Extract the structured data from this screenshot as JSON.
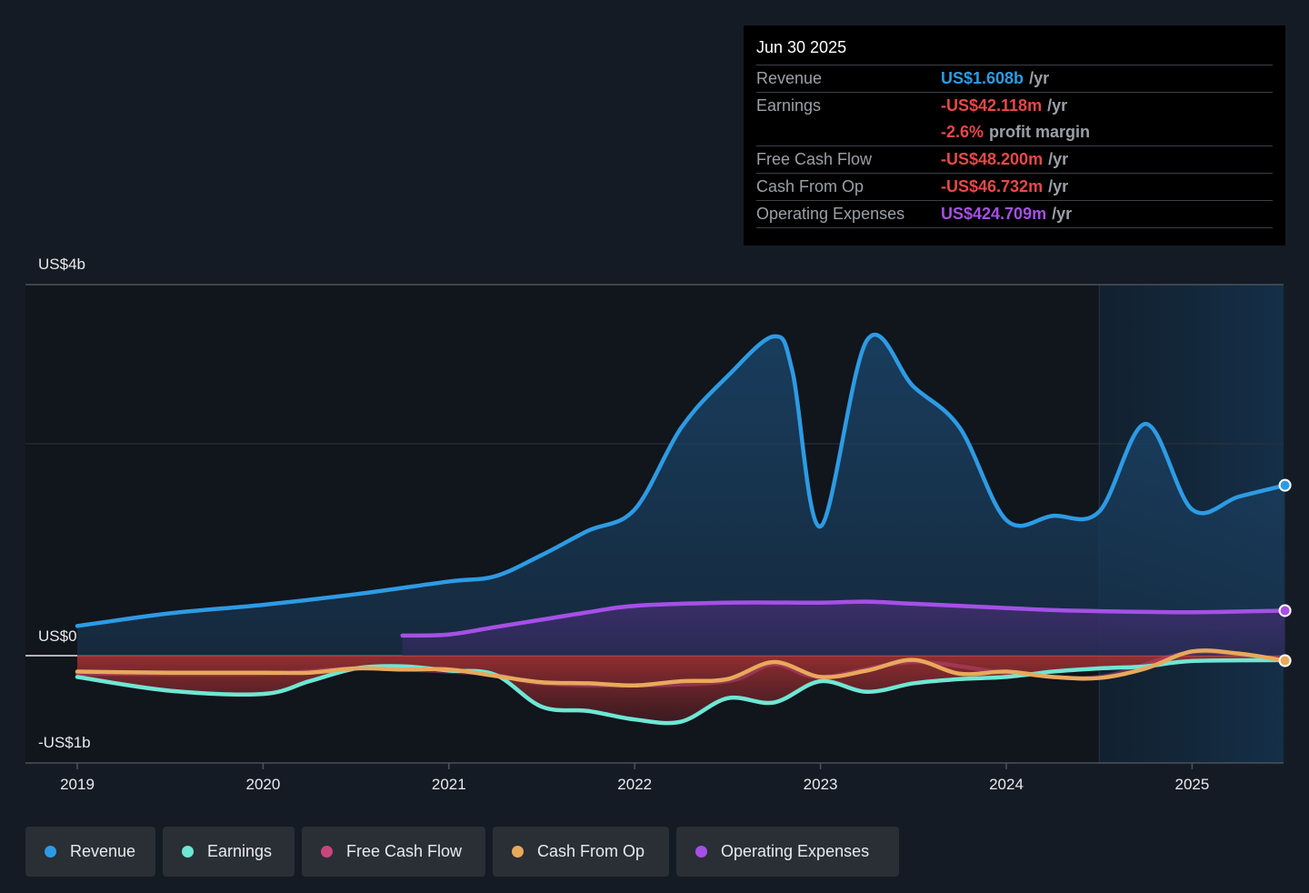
{
  "tooltip": {
    "date": "Jun 30 2025",
    "rows": [
      {
        "label": "Revenue",
        "value": "US$1.608b",
        "unit": "/yr",
        "color": "#2d9be4"
      },
      {
        "label": "Earnings",
        "value": "-US$42.118m",
        "unit": "/yr",
        "color": "#e84848"
      },
      {
        "label": "",
        "value": "-2.6%",
        "unit": "profit margin",
        "color": "#e84848"
      },
      {
        "label": "Free Cash Flow",
        "value": "-US$48.200m",
        "unit": "/yr",
        "color": "#e84848"
      },
      {
        "label": "Cash From Op",
        "value": "-US$46.732m",
        "unit": "/yr",
        "color": "#e84848"
      },
      {
        "label": "Operating Expenses",
        "value": "US$424.709m",
        "unit": "/yr",
        "color": "#a550e6"
      }
    ]
  },
  "legend": [
    {
      "label": "Revenue",
      "color": "#2d9be4"
    },
    {
      "label": "Earnings",
      "color": "#6ee7d4"
    },
    {
      "label": "Free Cash Flow",
      "color": "#c8467f"
    },
    {
      "label": "Cash From Op",
      "color": "#e8a95c"
    },
    {
      "label": "Operating Expenses",
      "color": "#a550e6"
    }
  ],
  "chart_data": {
    "type": "area",
    "title": "",
    "xlabel": "",
    "ylabel": "",
    "y_tick_labels": [
      "US$4b",
      "US$0",
      "-US$1b"
    ],
    "x_tick_labels": [
      "2019",
      "2020",
      "2021",
      "2022",
      "2023",
      "2024",
      "2025"
    ],
    "xlim": [
      2019.0,
      2025.5
    ],
    "ylim": [
      -1.0,
      4.0
    ],
    "units": "USD billions",
    "highlight_region_start": 2024.5,
    "series": [
      {
        "name": "Revenue",
        "color": "#2d9be4",
        "x": [
          2019.0,
          2019.5,
          2020.0,
          2020.5,
          2021.0,
          2021.25,
          2021.5,
          2021.75,
          2022.0,
          2022.25,
          2022.5,
          2022.75,
          2022.85,
          2023.0,
          2023.25,
          2023.5,
          2023.75,
          2024.0,
          2024.25,
          2024.5,
          2024.75,
          2025.0,
          2025.25,
          2025.5
        ],
        "values": [
          0.28,
          0.4,
          0.48,
          0.58,
          0.7,
          0.75,
          0.95,
          1.18,
          1.38,
          2.2,
          2.85,
          3.35,
          2.9,
          1.22,
          3.3,
          2.72,
          2.2,
          1.28,
          1.32,
          1.36,
          2.25,
          1.38,
          1.5,
          1.608
        ]
      },
      {
        "name": "Earnings",
        "color": "#6ee7d4",
        "x": [
          2019.0,
          2019.5,
          2020.0,
          2020.25,
          2020.5,
          2020.75,
          2021.0,
          2021.25,
          2021.5,
          2021.75,
          2022.0,
          2022.25,
          2022.5,
          2022.75,
          2023.0,
          2023.25,
          2023.5,
          2023.75,
          2024.0,
          2024.25,
          2024.5,
          2024.75,
          2025.0,
          2025.5
        ],
        "values": [
          -0.2,
          -0.33,
          -0.36,
          -0.24,
          -0.12,
          -0.1,
          -0.14,
          -0.18,
          -0.48,
          -0.52,
          -0.6,
          -0.62,
          -0.4,
          -0.44,
          -0.24,
          -0.34,
          -0.26,
          -0.22,
          -0.2,
          -0.15,
          -0.12,
          -0.1,
          -0.05,
          -0.042
        ]
      },
      {
        "name": "Free Cash Flow",
        "color": "#c8467f",
        "x": [
          2019.0,
          2020.0,
          2020.5,
          2021.0,
          2021.25,
          2021.5,
          2022.0,
          2022.5,
          2022.75,
          2023.0,
          2023.5,
          2024.0,
          2024.5,
          2025.0,
          2025.5
        ],
        "values": [
          -0.17,
          -0.17,
          -0.12,
          -0.15,
          -0.18,
          -0.26,
          -0.28,
          -0.24,
          -0.08,
          -0.2,
          -0.06,
          -0.16,
          -0.2,
          0.03,
          -0.048
        ]
      },
      {
        "name": "Cash From Op",
        "color": "#e8a95c",
        "x": [
          2019.0,
          2019.5,
          2020.0,
          2020.25,
          2020.5,
          2020.75,
          2021.0,
          2021.25,
          2021.5,
          2021.75,
          2022.0,
          2022.25,
          2022.5,
          2022.75,
          2023.0,
          2023.25,
          2023.5,
          2023.75,
          2024.0,
          2024.25,
          2024.5,
          2024.75,
          2025.0,
          2025.25,
          2025.5
        ],
        "values": [
          -0.15,
          -0.16,
          -0.16,
          -0.16,
          -0.12,
          -0.13,
          -0.13,
          -0.19,
          -0.25,
          -0.26,
          -0.28,
          -0.24,
          -0.22,
          -0.06,
          -0.2,
          -0.14,
          -0.04,
          -0.17,
          -0.15,
          -0.2,
          -0.21,
          -0.12,
          0.04,
          0.02,
          -0.047
        ]
      },
      {
        "name": "Operating Expenses",
        "color": "#a550e6",
        "x": [
          2020.75,
          2021.0,
          2021.25,
          2021.5,
          2021.75,
          2022.0,
          2022.5,
          2023.0,
          2023.25,
          2023.5,
          2024.0,
          2024.25,
          2024.5,
          2025.0,
          2025.5
        ],
        "values": [
          0.19,
          0.2,
          0.27,
          0.34,
          0.41,
          0.47,
          0.5,
          0.5,
          0.51,
          0.49,
          0.45,
          0.43,
          0.42,
          0.41,
          0.425
        ]
      }
    ]
  }
}
